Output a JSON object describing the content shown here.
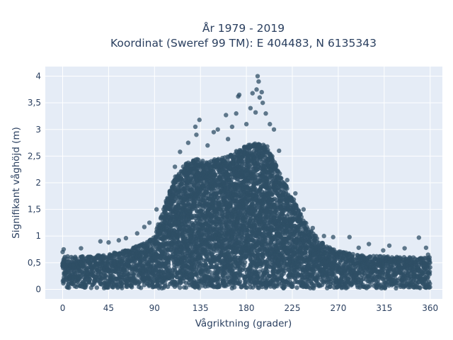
{
  "chart_data": {
    "type": "scatter",
    "title_lines": [
      "År 1979 - 2019",
      "Koordinat (Sweref 99 TM): E 404483, N 6135343"
    ],
    "xlabel": "Vågriktning (grader)",
    "ylabel": "Signifikant våghöjd (m)",
    "xlim": [
      -17,
      372
    ],
    "ylim": [
      -0.18,
      4.18
    ],
    "x_ticks": [
      0,
      45,
      90,
      135,
      180,
      225,
      270,
      315,
      360
    ],
    "x_tick_labels": [
      "0",
      "45",
      "90",
      "135",
      "180",
      "225",
      "270",
      "315",
      "360"
    ],
    "y_ticks": [
      0,
      0.5,
      1,
      1.5,
      2,
      2.5,
      3,
      3.5,
      4
    ],
    "y_tick_labels": [
      "0",
      "0,5",
      "1",
      "1,5",
      "2",
      "2,5",
      "3",
      "3,5",
      "4"
    ],
    "grid": true,
    "marker_color": "#2f4f66",
    "plot_bgcolor": "#e5ecf6",
    "envelope": {
      "direction_deg": [
        0,
        20,
        45,
        60,
        75,
        90,
        100,
        110,
        120,
        130,
        140,
        150,
        160,
        170,
        180,
        190,
        200,
        210,
        220,
        230,
        240,
        250,
        260,
        270,
        290,
        315,
        340,
        360
      ],
      "upper_height_m": [
        0.62,
        0.62,
        0.66,
        0.74,
        0.82,
        1.0,
        1.6,
        2.1,
        2.35,
        2.45,
        2.4,
        2.45,
        2.5,
        2.6,
        2.7,
        2.75,
        2.7,
        2.3,
        1.9,
        1.55,
        1.2,
        0.95,
        0.8,
        0.72,
        0.64,
        0.62,
        0.6,
        0.6
      ]
    },
    "outliers": [
      {
        "x": 0,
        "y": 0.7
      },
      {
        "x": 1,
        "y": 0.75
      },
      {
        "x": 18,
        "y": 0.77
      },
      {
        "x": 37,
        "y": 0.9
      },
      {
        "x": 45,
        "y": 0.88
      },
      {
        "x": 55,
        "y": 0.92
      },
      {
        "x": 62,
        "y": 0.96
      },
      {
        "x": 73,
        "y": 1.05
      },
      {
        "x": 80,
        "y": 1.17
      },
      {
        "x": 85,
        "y": 1.25
      },
      {
        "x": 92,
        "y": 1.5
      },
      {
        "x": 100,
        "y": 1.55
      },
      {
        "x": 110,
        "y": 2.3
      },
      {
        "x": 115,
        "y": 2.58
      },
      {
        "x": 123,
        "y": 2.75
      },
      {
        "x": 130,
        "y": 3.05
      },
      {
        "x": 134,
        "y": 3.18
      },
      {
        "x": 131,
        "y": 2.9
      },
      {
        "x": 142,
        "y": 2.7
      },
      {
        "x": 148,
        "y": 2.95
      },
      {
        "x": 152,
        "y": 3.0
      },
      {
        "x": 160,
        "y": 3.27
      },
      {
        "x": 162,
        "y": 2.82
      },
      {
        "x": 166,
        "y": 3.05
      },
      {
        "x": 170,
        "y": 3.3
      },
      {
        "x": 172,
        "y": 3.62
      },
      {
        "x": 173,
        "y": 3.65
      },
      {
        "x": 180,
        "y": 3.1
      },
      {
        "x": 184,
        "y": 3.4
      },
      {
        "x": 186,
        "y": 3.68
      },
      {
        "x": 189,
        "y": 3.32
      },
      {
        "x": 190,
        "y": 3.75
      },
      {
        "x": 191,
        "y": 4.0
      },
      {
        "x": 192,
        "y": 3.9
      },
      {
        "x": 193,
        "y": 3.6
      },
      {
        "x": 195,
        "y": 3.7
      },
      {
        "x": 196,
        "y": 3.5
      },
      {
        "x": 199,
        "y": 3.3
      },
      {
        "x": 203,
        "y": 3.1
      },
      {
        "x": 207,
        "y": 3.0
      },
      {
        "x": 212,
        "y": 2.6
      },
      {
        "x": 220,
        "y": 2.05
      },
      {
        "x": 228,
        "y": 1.8
      },
      {
        "x": 236,
        "y": 1.5
      },
      {
        "x": 245,
        "y": 1.15
      },
      {
        "x": 256,
        "y": 1.0
      },
      {
        "x": 265,
        "y": 0.98
      },
      {
        "x": 281,
        "y": 0.98
      },
      {
        "x": 290,
        "y": 0.78
      },
      {
        "x": 300,
        "y": 0.85
      },
      {
        "x": 314,
        "y": 0.73
      },
      {
        "x": 320,
        "y": 0.82
      },
      {
        "x": 335,
        "y": 0.77
      },
      {
        "x": 349,
        "y": 0.97
      },
      {
        "x": 356,
        "y": 0.78
      },
      {
        "x": 358,
        "y": 0.65
      }
    ]
  }
}
